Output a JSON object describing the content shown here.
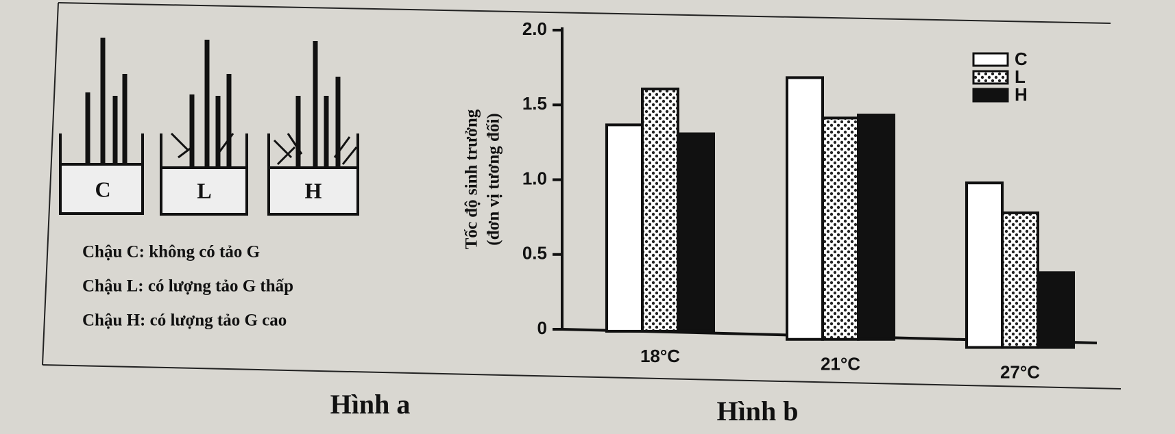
{
  "figure_a": {
    "pots": [
      "C",
      "L",
      "H"
    ],
    "captions": [
      "Chậu C: không có tảo G",
      "Chậu L: có lượng tảo G thấp",
      "Chậu H: có lượng tảo G cao"
    ],
    "title": "Hình a"
  },
  "chart_data": {
    "type": "bar",
    "title": "Hình b",
    "ylabel": [
      "Tốc độ sinh trưởng",
      "(đơn vị tương đối)"
    ],
    "categories": [
      "18°C",
      "21°C",
      "27°C"
    ],
    "series": [
      {
        "name": "C",
        "color": "#ffffff",
        "values": [
          1.38,
          1.75,
          1.1
        ]
      },
      {
        "name": "L",
        "color": "#ffffff",
        "pattern": "dots",
        "values": [
          1.62,
          1.48,
          0.9
        ]
      },
      {
        "name": "H",
        "color": "#111111",
        "values": [
          1.32,
          1.5,
          0.5
        ]
      }
    ],
    "ylim": [
      0,
      2.0
    ],
    "yticks": [
      0,
      0.5,
      {
        "value": 1.0,
        "label": "1.0"
      },
      1.5,
      {
        "value": 2.0,
        "label": "2.0"
      }
    ],
    "legend": "top-right"
  }
}
